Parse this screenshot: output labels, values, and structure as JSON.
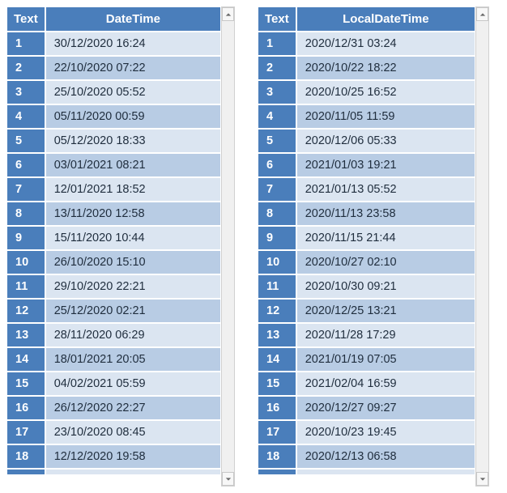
{
  "left": {
    "columns": [
      "Text",
      "DateTime"
    ],
    "rows": [
      {
        "n": "1",
        "v": "30/12/2020 16:24"
      },
      {
        "n": "2",
        "v": "22/10/2020 07:22"
      },
      {
        "n": "3",
        "v": "25/10/2020 05:52"
      },
      {
        "n": "4",
        "v": "05/11/2020 00:59"
      },
      {
        "n": "5",
        "v": "05/12/2020 18:33"
      },
      {
        "n": "6",
        "v": "03/01/2021 08:21"
      },
      {
        "n": "7",
        "v": "12/01/2021 18:52"
      },
      {
        "n": "8",
        "v": "13/11/2020 12:58"
      },
      {
        "n": "9",
        "v": "15/11/2020 10:44"
      },
      {
        "n": "10",
        "v": "26/10/2020 15:10"
      },
      {
        "n": "11",
        "v": "29/10/2020 22:21"
      },
      {
        "n": "12",
        "v": "25/12/2020 02:21"
      },
      {
        "n": "13",
        "v": "28/11/2020 06:29"
      },
      {
        "n": "14",
        "v": "18/01/2021 20:05"
      },
      {
        "n": "15",
        "v": "04/02/2021 05:59"
      },
      {
        "n": "16",
        "v": "26/12/2020 22:27"
      },
      {
        "n": "17",
        "v": "23/10/2020 08:45"
      },
      {
        "n": "18",
        "v": "12/12/2020 19:58"
      }
    ]
  },
  "right": {
    "columns": [
      "Text",
      "LocalDateTime"
    ],
    "rows": [
      {
        "n": "1",
        "v": "2020/12/31 03:24"
      },
      {
        "n": "2",
        "v": "2020/10/22 18:22"
      },
      {
        "n": "3",
        "v": "2020/10/25 16:52"
      },
      {
        "n": "4",
        "v": "2020/11/05 11:59"
      },
      {
        "n": "5",
        "v": "2020/12/06 05:33"
      },
      {
        "n": "6",
        "v": "2021/01/03 19:21"
      },
      {
        "n": "7",
        "v": "2021/01/13 05:52"
      },
      {
        "n": "8",
        "v": "2020/11/13 23:58"
      },
      {
        "n": "9",
        "v": "2020/11/15 21:44"
      },
      {
        "n": "10",
        "v": "2020/10/27 02:10"
      },
      {
        "n": "11",
        "v": "2020/10/30 09:21"
      },
      {
        "n": "12",
        "v": "2020/12/25 13:21"
      },
      {
        "n": "13",
        "v": "2020/11/28 17:29"
      },
      {
        "n": "14",
        "v": "2021/01/19 07:05"
      },
      {
        "n": "15",
        "v": "2021/02/04 16:59"
      },
      {
        "n": "16",
        "v": "2020/12/27 09:27"
      },
      {
        "n": "17",
        "v": "2020/10/23 19:45"
      },
      {
        "n": "18",
        "v": "2020/12/13 06:58"
      }
    ]
  },
  "colors": {
    "header_bg": "#4a7ebb",
    "header_fg": "#ffffff",
    "stripe_light": "#dbe5f1",
    "stripe_dark": "#b8cce4",
    "scroll_bg": "#f0f0f0",
    "scroll_border": "#d0d0d0",
    "arrow": "#6a6a6a"
  }
}
